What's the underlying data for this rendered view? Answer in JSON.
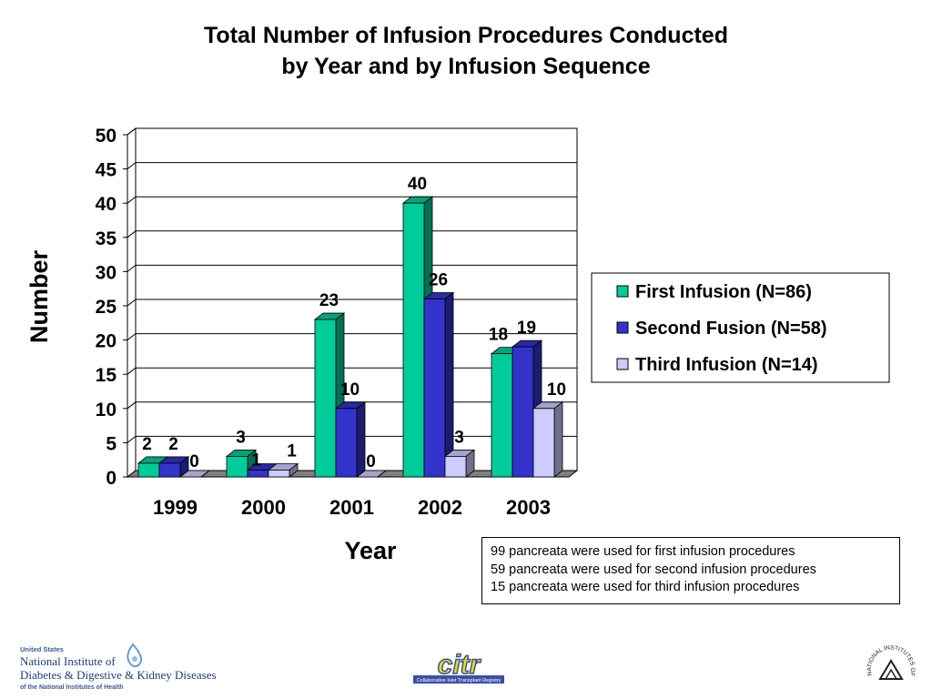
{
  "title": {
    "line1": "Total Number of Infusion Procedures Conducted",
    "line2": "by Year and by Infusion Sequence"
  },
  "chart_data": {
    "type": "bar",
    "categories": [
      "1999",
      "2000",
      "2001",
      "2002",
      "2003"
    ],
    "series": [
      {
        "name": "First Infusion (N=86)",
        "values": [
          2,
          3,
          23,
          40,
          18
        ],
        "color": "#00CC99"
      },
      {
        "name": "Second Fusion (N=58)",
        "values": [
          2,
          1,
          10,
          26,
          19
        ],
        "color": "#3333CC"
      },
      {
        "name": "Third Infusion (N=14)",
        "values": [
          0,
          1,
          0,
          3,
          10
        ],
        "color": "#CCCCFF"
      }
    ],
    "xlabel": "Year",
    "ylabel": "Number",
    "ylim": [
      0,
      50
    ],
    "yticks": [
      0,
      5,
      10,
      15,
      20,
      25,
      30,
      35,
      40,
      45,
      50
    ],
    "grid": true,
    "legend": "right",
    "style": "3d-bars"
  },
  "notes": [
    "99 pancreata were used for first infusion procedures",
    "59 pancreata were used for second infusion procedures",
    "15 pancreata were used for third infusion procedures"
  ],
  "logos": {
    "niddk_line1": "United States",
    "niddk_line2": "National Institute of",
    "niddk_line3": "Diabetes & Digestive & Kidney Diseases",
    "niddk_line4": "of the National Institutes of Health",
    "citr": "citr",
    "citr_sub": "Collaborative Islet Transplant Registry",
    "nih": "NATIONAL INSTITUTES OF HEALTH"
  }
}
